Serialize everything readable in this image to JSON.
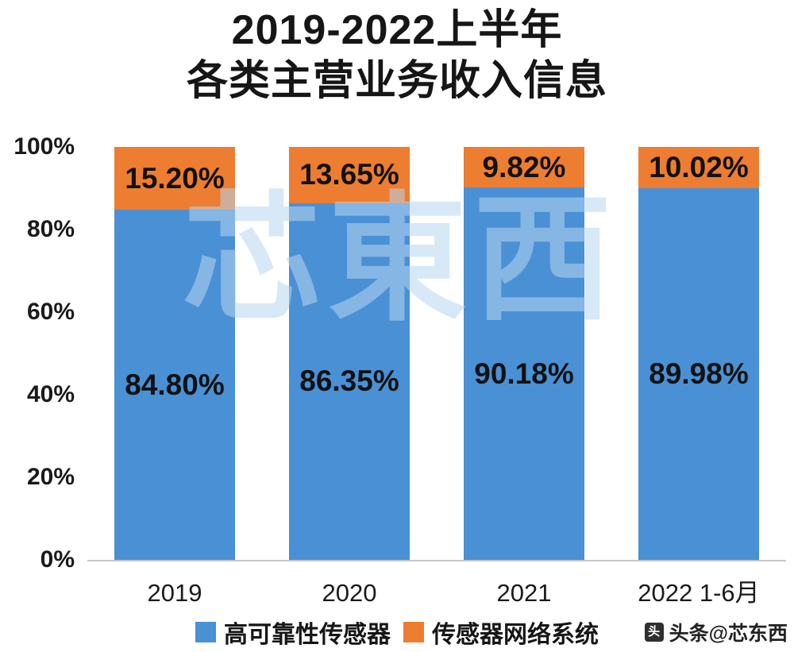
{
  "title": {
    "line1": "2019-2022上半年",
    "line2": "各类主营业务收入信息"
  },
  "chart_data": {
    "type": "bar",
    "stacked": true,
    "percent_stacked": true,
    "title": "2019-2022上半年 各类主营业务收入信息",
    "categories": [
      "2019",
      "2020",
      "2021",
      "2022 1-6月"
    ],
    "series": [
      {
        "name": "高可靠性传感器",
        "color": "#4a90d5",
        "values": [
          84.8,
          86.35,
          90.18,
          89.98
        ],
        "labels": [
          "84.80%",
          "86.35%",
          "90.18%",
          "89.98%"
        ]
      },
      {
        "name": "传感器网络系统",
        "color": "#ed7d31",
        "values": [
          15.2,
          13.65,
          9.82,
          10.02
        ],
        "labels": [
          "15.20%",
          "13.65%",
          "9.82%",
          "10.02%"
        ]
      }
    ],
    "ylim": [
      0,
      100
    ],
    "yticks": [
      0,
      20,
      40,
      60,
      80,
      100
    ],
    "ytick_labels": [
      "0%",
      "20%",
      "40%",
      "60%",
      "80%",
      "100%"
    ],
    "grid": false,
    "legend_position": "bottom",
    "axis_line_color": "#c6c6c6",
    "label_color": "#121212"
  },
  "watermark": {
    "center_text": "芯東西",
    "credit_text": "头条@芯东西",
    "credit_icon_glyph": "头"
  }
}
